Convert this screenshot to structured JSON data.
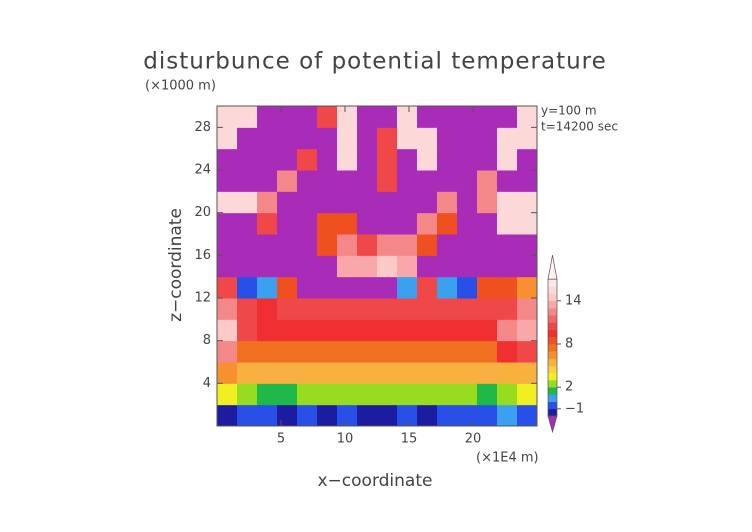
{
  "chart_data": {
    "type": "contourf",
    "title": "disturbunce of potential temperature",
    "y_unit_label": "(×1000 m)",
    "x_unit_label": "(×1E4 m)",
    "annotations": [
      "y=100 m",
      "t=14200 sec"
    ],
    "xlabel": "x−coordinate",
    "ylabel": "z−coordinate",
    "xlim": [
      0,
      25
    ],
    "ylim": [
      0,
      30
    ],
    "xticks": [
      5,
      10,
      15,
      20
    ],
    "yticks": [
      4,
      8,
      12,
      16,
      20,
      24,
      28
    ],
    "z": [
      [
        -2,
        -1,
        -1,
        -2,
        -1,
        -2,
        -1,
        -2,
        -2,
        -1,
        -2,
        -1,
        -1,
        -1,
        0,
        -1
      ],
      [
        3,
        2,
        1,
        1,
        2,
        2,
        2,
        2,
        2,
        2,
        2,
        2,
        2,
        1,
        2,
        3
      ],
      [
        6,
        5,
        5,
        5,
        5,
        5,
        5,
        5,
        5,
        5,
        5,
        5,
        5,
        5,
        5,
        5
      ],
      [
        12,
        7,
        7,
        7,
        7,
        7,
        7,
        7,
        7,
        7,
        7,
        7,
        7,
        7,
        9,
        10
      ],
      [
        14,
        10,
        9,
        9,
        9,
        9,
        9,
        9,
        9,
        9,
        9,
        9,
        9,
        9,
        12,
        13
      ],
      [
        12,
        10,
        9,
        10,
        10,
        10,
        10,
        10,
        10,
        10,
        10,
        10,
        10,
        10,
        10,
        12
      ],
      [
        10,
        -1,
        0,
        8,
        -3,
        -3,
        -3,
        -3,
        -3,
        0,
        10,
        0,
        -1,
        8,
        8,
        6
      ],
      [
        -3,
        -3,
        -3,
        -3,
        -3,
        -3,
        13,
        13,
        14,
        13,
        -3,
        -3,
        -3,
        -3,
        -3,
        -3
      ],
      [
        -3,
        -3,
        -3,
        -3,
        -3,
        8,
        12,
        10,
        12,
        12,
        8,
        -3,
        -3,
        -3,
        -3,
        -3
      ],
      [
        -3,
        -3,
        10,
        -3,
        -3,
        8,
        8,
        -3,
        -3,
        -3,
        12,
        8,
        -3,
        -3,
        15,
        15
      ],
      [
        15,
        15,
        12,
        -3,
        -3,
        -3,
        -3,
        -3,
        -3,
        -3,
        -3,
        12,
        -3,
        12,
        15,
        15
      ],
      [
        -3,
        -3,
        -3,
        12,
        -3,
        -3,
        -3,
        -3,
        10,
        -3,
        -3,
        -3,
        -3,
        12,
        -3,
        -3
      ],
      [
        -3,
        -3,
        -3,
        -3,
        10,
        -3,
        15,
        -3,
        10,
        -3,
        15,
        -3,
        -3,
        -3,
        15,
        -3
      ],
      [
        15,
        -3,
        -3,
        -3,
        -3,
        -3,
        15,
        -3,
        10,
        15,
        15,
        -3,
        -3,
        -3,
        15,
        15
      ],
      [
        15,
        15,
        -3,
        -3,
        -3,
        10,
        15,
        -3,
        -3,
        15,
        -3,
        -3,
        -3,
        -3,
        -3,
        15
      ]
    ],
    "colorbar": {
      "levels": [
        -2,
        -1,
        0,
        1,
        2,
        3,
        4,
        5,
        6,
        7,
        8,
        9,
        10,
        11,
        12,
        13,
        14,
        15,
        16,
        17
      ],
      "colors": [
        "#1c1ca0",
        "#2850e8",
        "#3ca0f0",
        "#20b848",
        "#98dc20",
        "#f0f020",
        "#f8d040",
        "#f8b040",
        "#f89030",
        "#f07020",
        "#f05020",
        "#f03030",
        "#f04848",
        "#f06868",
        "#f48888",
        "#f8a8a8",
        "#fcc8c8",
        "#fdd8d8",
        "#fee8e8"
      ],
      "under_color": "#a82cb8",
      "over_color": "#fff0f0",
      "ticks": [
        {
          "value": -1,
          "label": "−1"
        },
        2,
        8,
        14
      ]
    }
  }
}
